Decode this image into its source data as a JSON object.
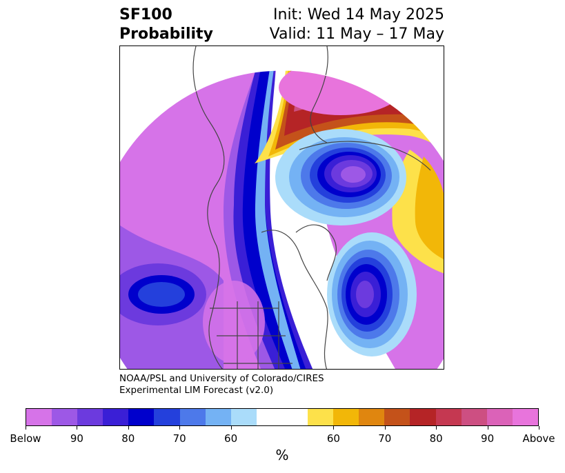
{
  "header": {
    "line1_left": "SF100",
    "line2_left": "Probability",
    "line1_right": "Init: Wed 14 May 2025",
    "line2_right": "Valid: 11 May – 17 May"
  },
  "credit": {
    "line1": "NOAA/PSL and University of Colorado/CIRES",
    "line2": "Experimental LIM Forecast (v2.0)"
  },
  "colorbar": {
    "unit": "%",
    "colors": [
      "#d673e8",
      "#9d58e6",
      "#6c3ade",
      "#3a1fd6",
      "#0000cc",
      "#2440dc",
      "#4d79ea",
      "#74b2f4",
      "#aadcfa",
      "#ffffff",
      "#ffffff",
      "#fde14a",
      "#f2b708",
      "#e0860f",
      "#c4521a",
      "#b52426",
      "#c53851",
      "#cd4f82",
      "#db62b8",
      "#e874dc"
    ],
    "tick_labels": [
      "Below",
      "90",
      "80",
      "70",
      "60",
      "60",
      "70",
      "80",
      "90",
      "Above"
    ]
  },
  "map": {
    "projection": "north-polar-stereographic",
    "colors": {
      "below_extreme": "#d673e8",
      "below_90": "#9d58e6",
      "below_80": "#3a1fd6",
      "below_70": "#0000cc",
      "below_60": "#74b2f4",
      "above_60": "#fde14a",
      "above_70": "#f2b708",
      "above_80": "#b52426",
      "above_extreme": "#e874dc"
    }
  }
}
